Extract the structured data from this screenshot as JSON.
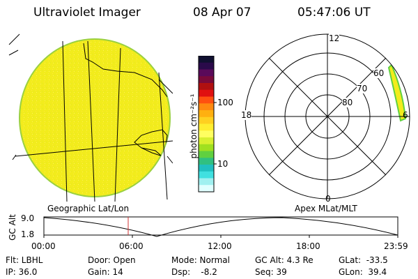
{
  "header": {
    "instrument": "Ultraviolet Imager",
    "date": "08 Apr 07",
    "time": "05:47:06 UT"
  },
  "colorbar": {
    "label": "photon cm⁻²s⁻¹",
    "ticks": [
      "100",
      "10"
    ],
    "colors": [
      "#101030",
      "#2a0a4a",
      "#5a0a5a",
      "#7a0a3a",
      "#b01010",
      "#e01010",
      "#ff5010",
      "#ff8a10",
      "#ffb010",
      "#ffd020",
      "#ffee30",
      "#ffff60",
      "#d8f030",
      "#a0e020",
      "#60d040",
      "#30c080",
      "#20c0c0",
      "#40e0e0",
      "#a0f0f0",
      "#e0ffff"
    ]
  },
  "map_left": {
    "caption": "Geographic Lat/Lon"
  },
  "map_right": {
    "caption": "Apex MLat/MLT",
    "lat_labels": [
      "60",
      "70",
      "80"
    ],
    "mlt_labels": [
      "12",
      "18",
      "6",
      "0"
    ]
  },
  "altitude_plot": {
    "ylabel": "GC Alt",
    "y_ticks": [
      "9.0",
      "1.8"
    ],
    "x_ticks": [
      "00:00",
      "06:00",
      "12:00",
      "18:00",
      "23:59"
    ]
  },
  "status": {
    "filter": "Flt: LBHL",
    "ip": "IP: 36.0",
    "door": "Door: Open",
    "gain": "Gain: 14",
    "mode": "Mode: Normal",
    "dsp": "Dsp:    -8.2",
    "gc_alt": "GC Alt: 4.3 Re",
    "seq": "Seq: 39",
    "glat": "GLat:  -33.5",
    "glon": "GLon:  39.4"
  }
}
